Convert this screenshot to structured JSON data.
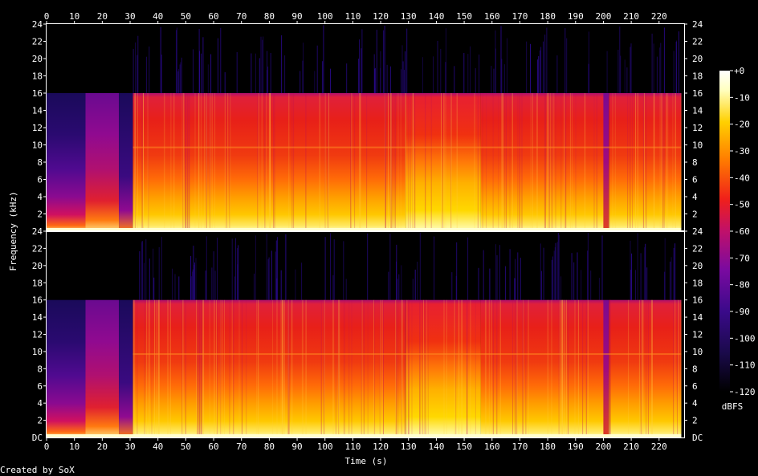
{
  "chart_data": {
    "type": "heatmap",
    "x_axis_label": "Time (s)",
    "y_axis_label": "Frequency (kHz)",
    "x_ticks": [
      0,
      10,
      20,
      30,
      40,
      50,
      60,
      70,
      80,
      90,
      100,
      110,
      120,
      130,
      140,
      150,
      160,
      170,
      180,
      190,
      200,
      210,
      220
    ],
    "xlim": [
      0,
      229
    ],
    "channels": [
      {
        "y_tick_labels": [
          "24",
          "22",
          "20",
          "18",
          "16",
          "14",
          "12",
          "10",
          "8",
          "6",
          "4",
          "2"
        ],
        "bottom_label": "24"
      },
      {
        "y_tick_labels": [
          "24",
          "22",
          "20",
          "18",
          "16",
          "14",
          "12",
          "10",
          "8",
          "6",
          "4",
          "2"
        ],
        "bottom_label": "DC"
      }
    ],
    "ylim_khz": [
      0,
      24
    ],
    "bandwidth_cutoff_khz": 16,
    "colorbar": {
      "label": "dBFS",
      "ticks": [
        "+0",
        "-10",
        "-20",
        "-30",
        "-40",
        "-50",
        "-60",
        "-70",
        "-80",
        "-90",
        "-100",
        "-110",
        "-120"
      ],
      "range": [
        -120,
        0
      ],
      "colors": [
        "#000000",
        "#1a0a4a",
        "#3a0a8a",
        "#7a0aa0",
        "#c0106a",
        "#f0201a",
        "#ff7a00",
        "#ffd000",
        "#ffffc0",
        "#ffffff"
      ]
    },
    "segments_seconds": [
      {
        "start": 0,
        "end": 14,
        "level": "quiet",
        "cutoff_khz": 16
      },
      {
        "start": 14,
        "end": 26,
        "level": "medium",
        "cutoff_khz": 16
      },
      {
        "start": 26,
        "end": 31,
        "level": "fade",
        "cutoff_khz": 16
      },
      {
        "start": 31,
        "end": 129,
        "level": "loud",
        "cutoff_khz": 16
      },
      {
        "start": 129,
        "end": 156,
        "level": "louder",
        "cutoff_khz": 16
      },
      {
        "start": 156,
        "end": 200,
        "level": "loud",
        "cutoff_khz": 16
      },
      {
        "start": 200,
        "end": 202,
        "level": "dip",
        "cutoff_khz": 16
      },
      {
        "start": 202,
        "end": 228,
        "level": "loud",
        "cutoff_khz": 16
      }
    ],
    "footer": "Created by SoX"
  }
}
